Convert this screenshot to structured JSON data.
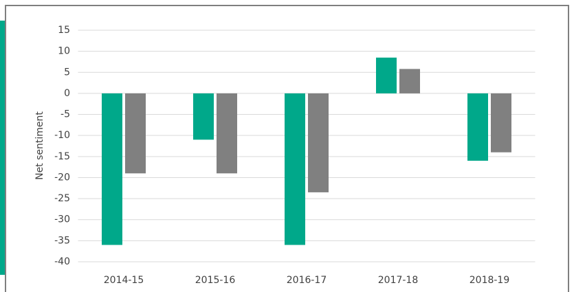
{
  "chart_data": {
    "type": "bar",
    "y_label": "Net sentiment",
    "categories": [
      "2014-15",
      "2015-16",
      "2016-17",
      "2017-18",
      "2018-19"
    ],
    "series": [
      {
        "color": "#00a88a",
        "values": [
          -36,
          -11,
          -36,
          8.5,
          -16
        ]
      },
      {
        "color": "#808080",
        "values": [
          -19,
          -19,
          -23.5,
          5.8,
          -14
        ]
      }
    ],
    "ylim": [
      -40,
      15
    ],
    "yticks": [
      -40,
      -35,
      -30,
      -25,
      -20,
      -15,
      -10,
      -5,
      0,
      5,
      10,
      15
    ],
    "grid": true
  }
}
